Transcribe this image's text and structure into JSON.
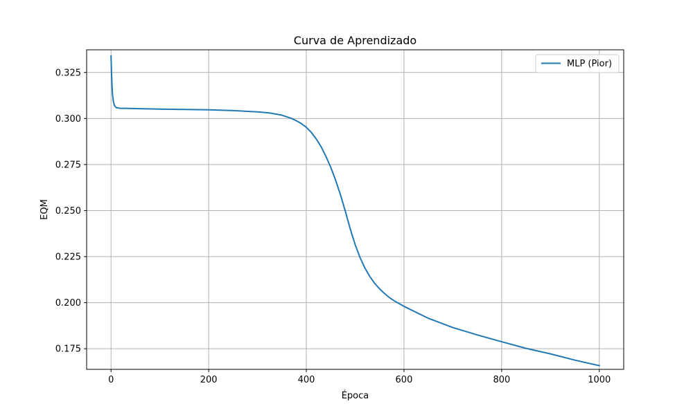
{
  "chart_data": {
    "type": "line",
    "title": "Curva de Aprendizado",
    "xlabel": "Época",
    "ylabel": "EQM",
    "xlim": [
      -50,
      1050
    ],
    "ylim": [
      0.1638,
      0.3373
    ],
    "x_ticks": [
      0,
      200,
      400,
      600,
      800,
      1000
    ],
    "y_ticks": [
      0.175,
      0.2,
      0.225,
      0.25,
      0.275,
      0.3,
      0.325
    ],
    "x_tick_labels": [
      "0",
      "200",
      "400",
      "600",
      "800",
      "1000"
    ],
    "y_tick_labels": [
      "0.175",
      "0.200",
      "0.225",
      "0.250",
      "0.275",
      "0.300",
      "0.325"
    ],
    "grid": true,
    "legend_position": "top-right",
    "series": [
      {
        "name": "MLP (Pior)",
        "color": "#1f77b4",
        "x": [
          0,
          1,
          2,
          3,
          5,
          7,
          10,
          15,
          20,
          30,
          50,
          100,
          150,
          200,
          250,
          300,
          325,
          350,
          370,
          380,
          390,
          400,
          410,
          420,
          430,
          440,
          450,
          460,
          470,
          480,
          490,
          500,
          510,
          520,
          530,
          540,
          550,
          560,
          570,
          580,
          600,
          650,
          700,
          750,
          800,
          850,
          900,
          950,
          1000
        ],
        "y": [
          0.334,
          0.325,
          0.318,
          0.313,
          0.309,
          0.307,
          0.306,
          0.3057,
          0.3055,
          0.3055,
          0.3054,
          0.3051,
          0.3049,
          0.3047,
          0.3043,
          0.3036,
          0.303,
          0.3018,
          0.3,
          0.2987,
          0.2972,
          0.2952,
          0.2925,
          0.289,
          0.2848,
          0.2795,
          0.2735,
          0.2665,
          0.2585,
          0.2495,
          0.24,
          0.2315,
          0.2245,
          0.2188,
          0.2142,
          0.2105,
          0.2075,
          0.205,
          0.2028,
          0.201,
          0.198,
          0.1915,
          0.1865,
          0.1825,
          0.1788,
          0.1752,
          0.1722,
          0.1688,
          0.1658
        ]
      }
    ]
  }
}
